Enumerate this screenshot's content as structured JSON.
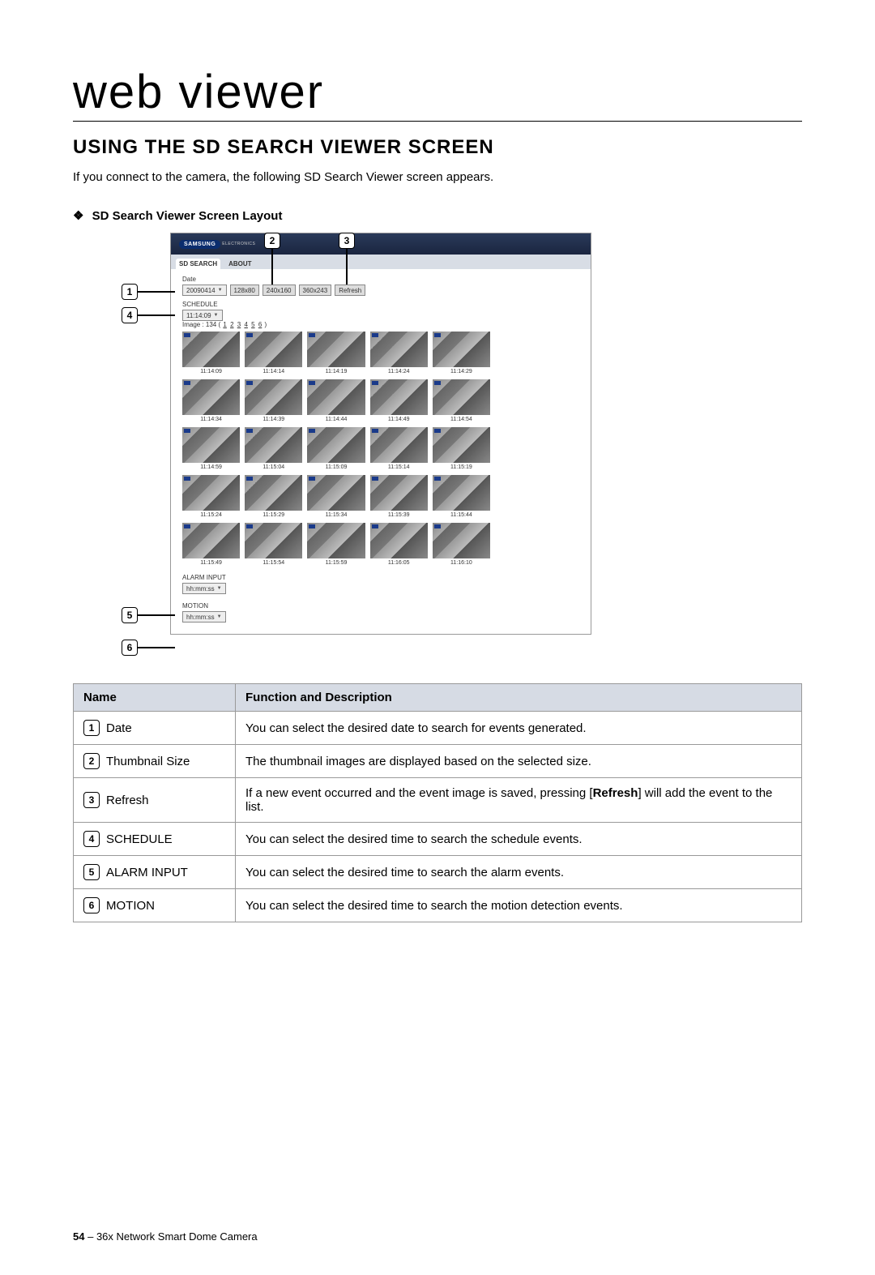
{
  "page": {
    "title": "web viewer",
    "heading": "USING THE SD SEARCH VIEWER SCREEN",
    "intro": "If you connect to the camera, the following SD Search Viewer screen appears.",
    "subheading": "SD Search Viewer Screen Layout",
    "footer_page": "54",
    "footer_sep": " – ",
    "footer_text": "36x Network Smart Dome Camera"
  },
  "callouts": [
    "1",
    "2",
    "3",
    "4",
    "5",
    "6"
  ],
  "app": {
    "logo": "SAMSUNG",
    "logo_sub": "ELECTRONICS",
    "tab_active": "SD SEARCH",
    "tab_other": "ABOUT",
    "date_label": "Date",
    "date_value": "20090414",
    "size1": "128x80",
    "size2": "240x160",
    "size3": "360x243",
    "refresh": "Refresh",
    "schedule_label": "SCHEDULE",
    "schedule_value": "11:14:09",
    "pager_prefix": "Image : 134 (",
    "pager_pages": [
      "1",
      "2",
      "3",
      "4",
      "5",
      "6"
    ],
    "pager_suffix": ")",
    "alarm_label": "ALARM INPUT",
    "alarm_value": "hh:mm:ss",
    "motion_label": "MOTION",
    "motion_value": "hh:mm:ss",
    "thumbs": [
      "11:14:09",
      "11:14:14",
      "11:14:19",
      "11:14:24",
      "11:14:29",
      "11:14:34",
      "11:14:39",
      "11:14:44",
      "11:14:49",
      "11:14:54",
      "11:14:59",
      "11:15:04",
      "11:15:09",
      "11:15:14",
      "11:15:19",
      "11:15:24",
      "11:15:29",
      "11:15:34",
      "11:15:39",
      "11:15:44",
      "11:15:49",
      "11:15:54",
      "11:15:59",
      "11:16:05",
      "11:16:10"
    ]
  },
  "table": {
    "col_name": "Name",
    "col_desc": "Function and Description",
    "rows": [
      {
        "n": "1",
        "name": "Date",
        "desc": "You can select the desired date to search for events generated."
      },
      {
        "n": "2",
        "name": "Thumbnail Size",
        "desc": "The thumbnail images are displayed based on the selected size."
      },
      {
        "n": "3",
        "name": "Refresh",
        "desc": "If a new event occurred and the event image is saved, pressing [Refresh] will add the event to the list."
      },
      {
        "n": "4",
        "name": "SCHEDULE",
        "desc": "You can select the desired time to search the schedule events."
      },
      {
        "n": "5",
        "name": "ALARM INPUT",
        "desc": "You can select the desired time to search the alarm events."
      },
      {
        "n": "6",
        "name": "MOTION",
        "desc": "You can select the desired time to search the motion detection events."
      }
    ]
  }
}
